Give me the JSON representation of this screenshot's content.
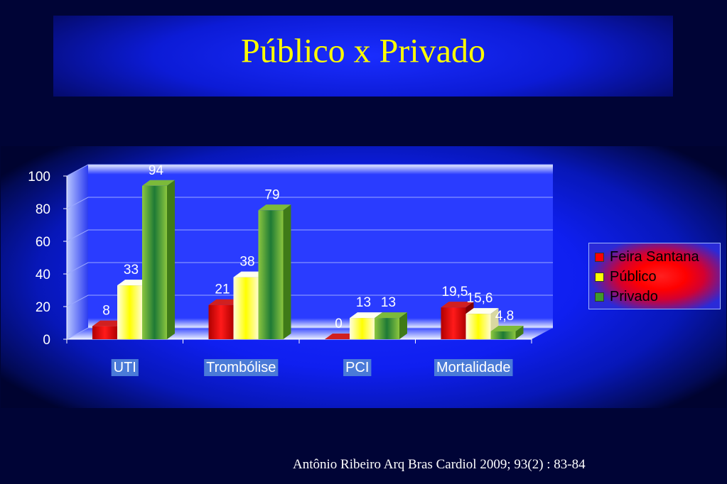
{
  "slide": {
    "title": "Público x Privado",
    "citation": "Antônio Ribeiro Arq Bras Cardiol 2009; 93(2) : 83-84"
  },
  "colors": {
    "feira_santana": "#ff0000",
    "publico": "#ffff00",
    "privado": "#5aa81e",
    "title_text": "#ffff00"
  },
  "chart_data": {
    "type": "bar",
    "categories": [
      "UTI",
      "Trombólise",
      "PCI",
      "Mortalidade"
    ],
    "series": [
      {
        "name": "Feira Santana",
        "values": [
          8,
          21,
          0,
          19.5
        ],
        "labels": [
          "8",
          "21",
          "0",
          "19,5"
        ]
      },
      {
        "name": "Público",
        "values": [
          33,
          38,
          13,
          15.6
        ],
        "labels": [
          "33",
          "38",
          "13",
          "15,6"
        ]
      },
      {
        "name": "Privado",
        "values": [
          94,
          79,
          13,
          4.8
        ],
        "labels": [
          "94",
          "79",
          "13",
          "4,8"
        ]
      }
    ],
    "ylim": [
      0,
      100
    ],
    "yticks": [
      0,
      20,
      40,
      60,
      80,
      100
    ],
    "grid": true,
    "legend_position": "right",
    "style": "3d"
  }
}
